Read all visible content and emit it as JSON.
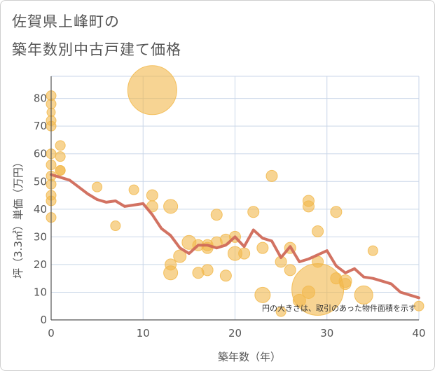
{
  "title_line1": "佐賀県上峰町の",
  "title_line2": "築年数別中古戸建て価格",
  "chart_data": {
    "type": "scatter",
    "title": "佐賀県上峰町の築年数別中古戸建て価格",
    "xlabel": "築年数（年）",
    "ylabel": "坪（3.3㎡）単価（万円）",
    "xlim": [
      0,
      40
    ],
    "ylim": [
      0,
      88
    ],
    "xticks": [
      0,
      10,
      20,
      30,
      40
    ],
    "yticks": [
      0,
      10,
      20,
      30,
      40,
      50,
      60,
      70,
      80
    ],
    "grid": true,
    "note": "円の大きさは、取引のあった物件面積を示す",
    "colors": {
      "bubble": "#f2b84b",
      "line": "#d06a5a",
      "grid": "#c9d6e8",
      "axis": "#555555"
    },
    "bubbles": [
      {
        "x": 0,
        "y": 81,
        "r": 7
      },
      {
        "x": 0,
        "y": 78,
        "r": 7
      },
      {
        "x": 0,
        "y": 75,
        "r": 6
      },
      {
        "x": 0,
        "y": 72,
        "r": 7
      },
      {
        "x": 0,
        "y": 70,
        "r": 7
      },
      {
        "x": 0,
        "y": 60,
        "r": 7
      },
      {
        "x": 0,
        "y": 56,
        "r": 7
      },
      {
        "x": 0,
        "y": 52,
        "r": 7
      },
      {
        "x": 0,
        "y": 49,
        "r": 7
      },
      {
        "x": 0,
        "y": 45,
        "r": 7
      },
      {
        "x": 0,
        "y": 43,
        "r": 7
      },
      {
        "x": 0,
        "y": 37,
        "r": 7
      },
      {
        "x": 1,
        "y": 63,
        "r": 7
      },
      {
        "x": 1,
        "y": 59,
        "r": 7
      },
      {
        "x": 1,
        "y": 54,
        "r": 7
      },
      {
        "x": 1,
        "y": 54,
        "r": 7
      },
      {
        "x": 5,
        "y": 48,
        "r": 7
      },
      {
        "x": 7,
        "y": 34,
        "r": 7
      },
      {
        "x": 9,
        "y": 47,
        "r": 7
      },
      {
        "x": 11,
        "y": 83,
        "r": 35
      },
      {
        "x": 11,
        "y": 45,
        "r": 8
      },
      {
        "x": 11,
        "y": 41,
        "r": 8
      },
      {
        "x": 13,
        "y": 41,
        "r": 10
      },
      {
        "x": 13,
        "y": 20,
        "r": 8
      },
      {
        "x": 13,
        "y": 17,
        "r": 10
      },
      {
        "x": 14,
        "y": 23,
        "r": 9
      },
      {
        "x": 15,
        "y": 28,
        "r": 10
      },
      {
        "x": 16,
        "y": 27,
        "r": 8
      },
      {
        "x": 16,
        "y": 17,
        "r": 8
      },
      {
        "x": 17,
        "y": 27,
        "r": 8
      },
      {
        "x": 17,
        "y": 26,
        "r": 8
      },
      {
        "x": 17,
        "y": 18,
        "r": 8
      },
      {
        "x": 18,
        "y": 38,
        "r": 8
      },
      {
        "x": 18,
        "y": 28,
        "r": 8
      },
      {
        "x": 19,
        "y": 29,
        "r": 8
      },
      {
        "x": 19,
        "y": 16,
        "r": 8
      },
      {
        "x": 20,
        "y": 24,
        "r": 10
      },
      {
        "x": 20,
        "y": 30,
        "r": 8
      },
      {
        "x": 21,
        "y": 24,
        "r": 8
      },
      {
        "x": 22,
        "y": 39,
        "r": 8
      },
      {
        "x": 23,
        "y": 26,
        "r": 8
      },
      {
        "x": 23,
        "y": 9,
        "r": 11
      },
      {
        "x": 24,
        "y": 52,
        "r": 8
      },
      {
        "x": 25,
        "y": 21,
        "r": 8
      },
      {
        "x": 25,
        "y": 3,
        "r": 7
      },
      {
        "x": 26,
        "y": 26,
        "r": 8
      },
      {
        "x": 26,
        "y": 18,
        "r": 8
      },
      {
        "x": 27,
        "y": 7,
        "r": 9
      },
      {
        "x": 28,
        "y": 43,
        "r": 8
      },
      {
        "x": 28,
        "y": 41,
        "r": 8
      },
      {
        "x": 28,
        "y": 10,
        "r": 9
      },
      {
        "x": 29,
        "y": 32,
        "r": 8
      },
      {
        "x": 29,
        "y": 21,
        "r": 8
      },
      {
        "x": 29,
        "y": 11,
        "r": 37
      },
      {
        "x": 31,
        "y": 39,
        "r": 8
      },
      {
        "x": 31,
        "y": 15,
        "r": 8
      },
      {
        "x": 32,
        "y": 14,
        "r": 9
      },
      {
        "x": 32,
        "y": 13,
        "r": 8
      },
      {
        "x": 34,
        "y": 9,
        "r": 13
      },
      {
        "x": 35,
        "y": 25,
        "r": 7
      },
      {
        "x": 40,
        "y": 5,
        "r": 7
      }
    ],
    "trend": {
      "x": [
        0,
        1,
        2,
        3,
        4,
        5,
        6,
        7,
        8,
        9,
        10,
        11,
        12,
        13,
        14,
        15,
        16,
        17,
        18,
        19,
        20,
        21,
        22,
        23,
        24,
        25,
        26,
        27,
        28,
        29,
        30,
        31,
        32,
        33,
        34,
        35,
        36,
        37,
        38,
        39,
        40
      ],
      "y": [
        52.5,
        51.5,
        50.5,
        48,
        45.5,
        43.5,
        42.5,
        43,
        41,
        41.5,
        42,
        38,
        33,
        30.5,
        26,
        24,
        27,
        27,
        26,
        27,
        30,
        26.5,
        32.5,
        29.5,
        28.5,
        22.5,
        26.5,
        21,
        22,
        23.5,
        25,
        19.5,
        17,
        18.5,
        15.5,
        15,
        14,
        13,
        10,
        9,
        8
      ]
    }
  }
}
